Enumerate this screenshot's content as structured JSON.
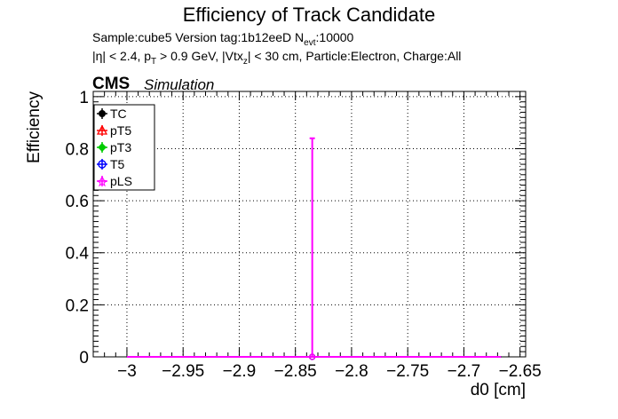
{
  "header": {
    "title": "Efficiency of Track Candidate",
    "sample_line": "Sample:cube5   Version tag:1b12eeD  N",
    "sample_sub": "evt",
    "sample_tail": ":10000",
    "cuts_a": "|η| < 2.4, p",
    "cuts_a_sub": "T",
    "cuts_b": " > 0.9 GeV, |Vtx",
    "cuts_b_sub": "z",
    "cuts_c": "| < 30 cm, Particle:Electron, Charge:All",
    "cms": "CMS",
    "simulation": "Simulation"
  },
  "chart_data": {
    "type": "line",
    "title": "Efficiency of Track Candidate",
    "xlabel": "d0 [cm]",
    "ylabel": "Efficiency",
    "xlim": [
      -3.03,
      -2.645
    ],
    "ylim": [
      0,
      1.02
    ],
    "grid": true,
    "legend_position": "top-left",
    "x_ticks": [
      "−3",
      "−2.95",
      "−2.9",
      "−2.85",
      "−2.8",
      "−2.75",
      "−2.7",
      "−2.65"
    ],
    "x_tick_values": [
      -3.0,
      -2.95,
      -2.9,
      -2.85,
      -2.8,
      -2.75,
      -2.7,
      -2.65
    ],
    "y_ticks": [
      "0",
      "0.2",
      "0.4",
      "0.6",
      "0.8",
      "1"
    ],
    "y_tick_values": [
      0,
      0.2,
      0.4,
      0.6,
      0.8,
      1.0
    ],
    "series": [
      {
        "name": "TC",
        "color": "#000000",
        "marker": "circle-filled",
        "x_range": [
          -3.0,
          -2.667
        ],
        "spike_x": -2.835,
        "spike_y": 0.0
      },
      {
        "name": "pT5",
        "color": "#ff0000",
        "marker": "triangle-open",
        "x_range": [
          -3.0,
          -2.667
        ],
        "spike_x": -2.835,
        "spike_y": 0.0
      },
      {
        "name": "pT3",
        "color": "#00cc00",
        "marker": "diamond-filled",
        "x_range": [
          -3.0,
          -2.667
        ],
        "spike_x": -2.835,
        "spike_y": 0.0
      },
      {
        "name": "T5",
        "color": "#0000ff",
        "marker": "circle-open",
        "x_range": [
          -3.0,
          -2.667
        ],
        "spike_x": -2.835,
        "spike_y": 0.0
      },
      {
        "name": "pLS",
        "color": "#ff00ff",
        "marker": "star-open",
        "x_range": [
          -3.0,
          -2.667
        ],
        "spike_x": -2.835,
        "spike_y": 0.84
      }
    ]
  }
}
